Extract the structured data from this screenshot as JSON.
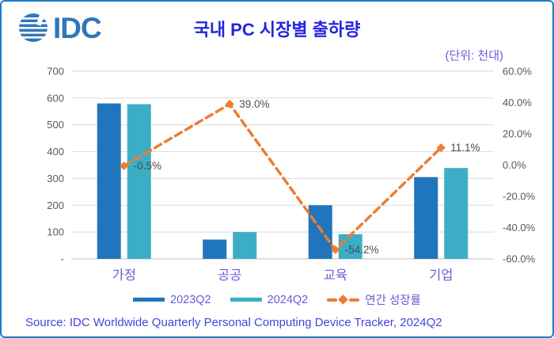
{
  "logo": {
    "text": "IDC"
  },
  "header": {
    "title": "국내 PC 시장별 출하량",
    "unit_label": "(단위: 천대)"
  },
  "source": "Source: IDC Worldwide Quarterly Personal Computing Device Tracker, 2024Q2",
  "colors": {
    "bar_2023": "#2076bc",
    "bar_2024": "#3baec6",
    "growth_line": "#ed7d31",
    "gridline": "#d9d9d9",
    "axis_line": "#bfbfbf",
    "tick_text": "#595959",
    "category_text": "#6a60da",
    "title_text": "#2424e0",
    "border": "#1e7bc8"
  },
  "chart_data": {
    "type": "bar",
    "subtype": "bar+line combo, dual axis",
    "title": "국내 PC 시장별 출하량",
    "categories": [
      "가정",
      "공공",
      "교육",
      "기업"
    ],
    "series": [
      {
        "name": "2023Q2",
        "type": "bar",
        "axis": "left",
        "color": "#2076bc",
        "values": [
          580,
          72,
          200,
          305
        ]
      },
      {
        "name": "2024Q2",
        "type": "bar",
        "axis": "left",
        "color": "#3baec6",
        "values": [
          577,
          100,
          92,
          339
        ]
      },
      {
        "name": "연간 성장률",
        "type": "line",
        "axis": "right",
        "color": "#ed7d31",
        "values": [
          -0.5,
          39.0,
          -54.2,
          11.1
        ],
        "point_labels": [
          "-0.5%",
          "39.0%",
          "-54.2%",
          "11.1%"
        ]
      }
    ],
    "left_axis": {
      "min": 0,
      "max": 700,
      "ticks": [
        "700",
        "600",
        "500",
        "400",
        "300",
        "200",
        "100",
        "-"
      ]
    },
    "right_axis": {
      "min": -60,
      "max": 60,
      "ticks": [
        "60.0%",
        "40.0%",
        "20.0%",
        "0.0%",
        "-20.0%",
        "-40.0%",
        "-60.0%"
      ]
    },
    "grid": true,
    "legend_position": "bottom"
  }
}
